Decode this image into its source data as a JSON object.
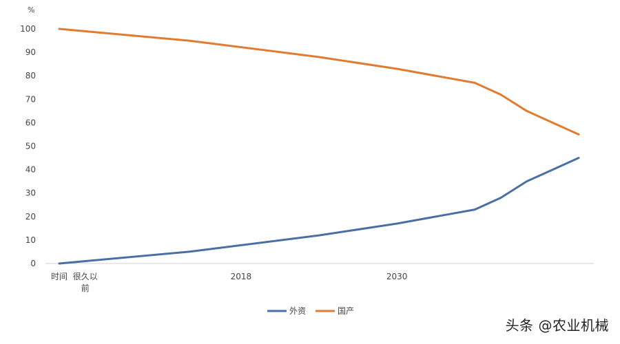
{
  "watermark": "头条 @农业机械",
  "chart_data": {
    "type": "line",
    "title": "",
    "ylabel": "%",
    "xlabel": "",
    "ylim": [
      0,
      100
    ],
    "yticks": [
      0,
      10,
      20,
      30,
      40,
      50,
      60,
      70,
      80,
      90,
      100
    ],
    "x_tick_labels": [
      {
        "x": 0,
        "lines": [
          "时间"
        ]
      },
      {
        "x": 1,
        "lines": [
          "很久以",
          "前"
        ]
      },
      {
        "x": 7,
        "lines": [
          "2018"
        ]
      },
      {
        "x": 13,
        "lines": [
          "2030"
        ]
      }
    ],
    "x": [
      0,
      5,
      10,
      13,
      16,
      17,
      18,
      19,
      20
    ],
    "series": [
      {
        "name": "外资",
        "color": "#4a6fa5",
        "values": [
          0,
          5,
          12,
          17,
          23,
          28,
          35,
          40,
          45
        ]
      },
      {
        "name": "国产",
        "color": "#e07b30",
        "values": [
          100,
          95,
          88,
          83,
          77,
          72,
          65,
          60,
          55
        ]
      }
    ]
  }
}
